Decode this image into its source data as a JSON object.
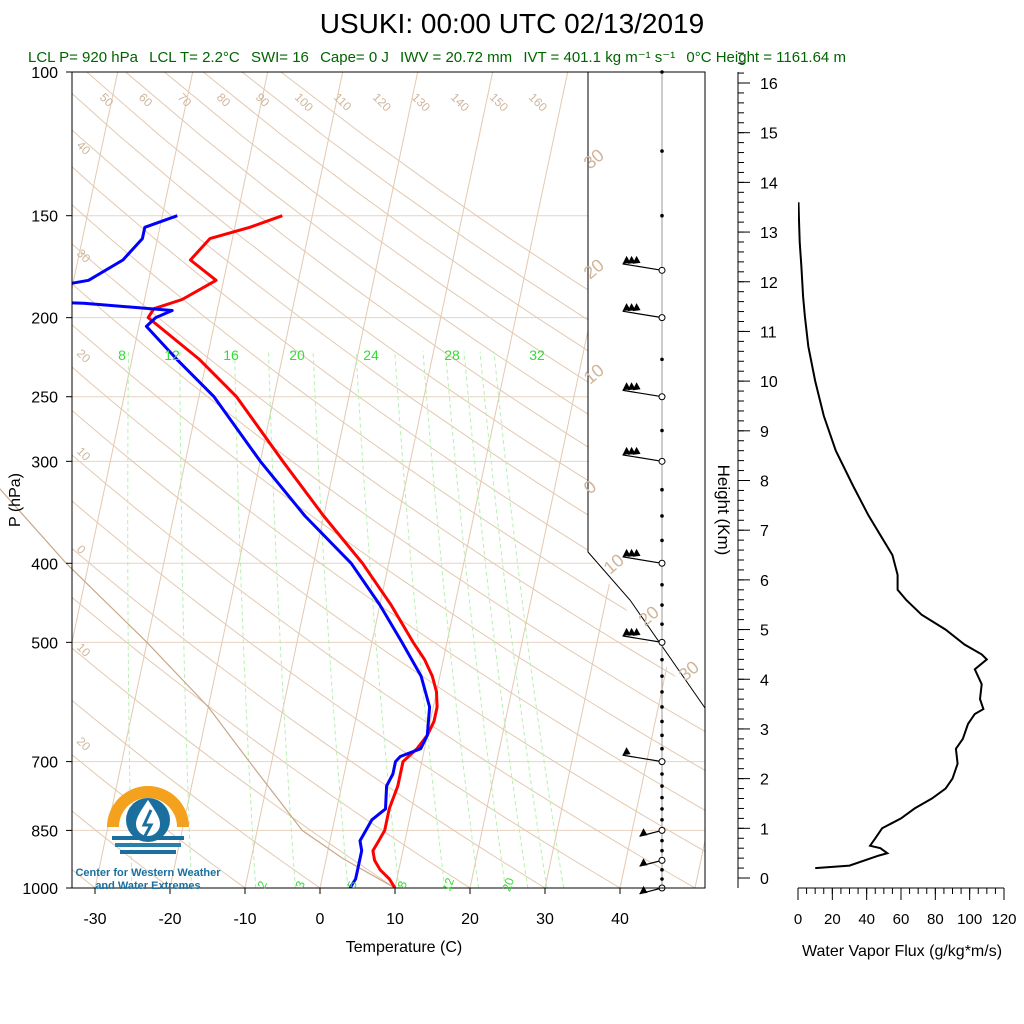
{
  "header": {
    "title": "USUKI: 00:00 UTC 02/13/2019",
    "info": [
      "LCL P= 920 hPa",
      "LCL T= 2.2°C",
      "SWI= 16",
      "Cape= 0 J",
      "IWV = 20.72 mm",
      "IVT = 401.1 kg m⁻¹ s⁻¹",
      "0°C Height = 1161.64 m"
    ]
  },
  "logo": {
    "line1": "Center for Western Weather",
    "line2": "and Water Extremes",
    "colors": {
      "orange": "#f4a11d",
      "blue": "#1b6f9f",
      "teal": "#2a7fa8"
    }
  },
  "chart_data": [
    {
      "type": "line",
      "subtype": "skew-T log-P sounding",
      "xlabel": "Temperature (C)",
      "ylabel": "P (hPa)",
      "xticks": [
        -30,
        -20,
        -10,
        0,
        10,
        20,
        30,
        40
      ],
      "yticks": [
        100,
        150,
        200,
        250,
        300,
        400,
        500,
        700,
        850,
        1000
      ],
      "ylim": [
        1000,
        100
      ],
      "y_scale": "log",
      "dry_adiabat_labels": [
        "50",
        "60",
        "70",
        "80",
        "90",
        "100",
        "110",
        "120",
        "130",
        "140",
        "150",
        "160",
        "40",
        "30",
        "20",
        "10",
        "0",
        "10",
        "20"
      ],
      "isotherm_labels": [
        "30",
        "20",
        "10",
        "0",
        "10",
        "20",
        "30"
      ],
      "mixing_ratio_labels_upper": [
        "8",
        "12",
        "16",
        "20",
        "24",
        "28",
        "32"
      ],
      "mixing_ratio_labels_lower": [
        "2",
        "3",
        "5",
        "8",
        "12",
        "20"
      ],
      "series": [
        {
          "name": "Temperature",
          "color": "#ff0000",
          "points": [
            [
              1000,
              10.0
            ],
            [
              975,
              9.0
            ],
            [
              950,
              7.5
            ],
            [
              925,
              6.5
            ],
            [
              900,
              6.0
            ],
            [
              875,
              6.5
            ],
            [
              850,
              7.0
            ],
            [
              800,
              7.0
            ],
            [
              750,
              7.5
            ],
            [
              700,
              7.5
            ],
            [
              675,
              9.0
            ],
            [
              650,
              10.0
            ],
            [
              625,
              10.5
            ],
            [
              600,
              10.5
            ],
            [
              575,
              10.0
            ],
            [
              550,
              9.0
            ],
            [
              525,
              7.5
            ],
            [
              500,
              5.5
            ],
            [
              450,
              1.5
            ],
            [
              400,
              -3.5
            ],
            [
              350,
              -10.0
            ],
            [
              300,
              -17.0
            ],
            [
              250,
              -25.0
            ],
            [
              225,
              -31.0
            ],
            [
              200,
              -39.0
            ],
            [
              195,
              -38.5
            ],
            [
              190,
              -35.0
            ],
            [
              180,
              -31.0
            ],
            [
              170,
              -35.0
            ],
            [
              160,
              -33.0
            ],
            [
              155,
              -28.0
            ],
            [
              150,
              -24.0
            ]
          ]
        },
        {
          "name": "Dewpoint",
          "color": "#0000ff",
          "points": [
            [
              1000,
              4.0
            ],
            [
              975,
              4.5
            ],
            [
              950,
              4.5
            ],
            [
              925,
              4.5
            ],
            [
              900,
              4.5
            ],
            [
              875,
              4.0
            ],
            [
              850,
              4.5
            ],
            [
              825,
              5.0
            ],
            [
              800,
              6.5
            ],
            [
              750,
              6.0
            ],
            [
              725,
              6.5
            ],
            [
              700,
              6.5
            ],
            [
              690,
              7.0
            ],
            [
              675,
              9.5
            ],
            [
              650,
              10.0
            ],
            [
              600,
              9.5
            ],
            [
              550,
              7.5
            ],
            [
              500,
              4.0
            ],
            [
              450,
              0.0
            ],
            [
              400,
              -5.0
            ],
            [
              350,
              -12.5
            ],
            [
              300,
              -20.0
            ],
            [
              250,
              -28.0
            ],
            [
              225,
              -34.0
            ],
            [
              205,
              -39.0
            ],
            [
              200,
              -38.0
            ],
            [
              196,
              -36.0
            ],
            [
              192,
              -48.0
            ],
            [
              190,
              -65.0
            ],
            [
              185,
              -55.0
            ],
            [
              180,
              -48.0
            ],
            [
              170,
              -44.0
            ],
            [
              160,
              -42.0
            ],
            [
              155,
              -42.0
            ],
            [
              150,
              -38.0
            ]
          ]
        }
      ],
      "wind_barbs": [
        "1000",
        "925",
        "850",
        "700",
        "500",
        "400",
        "300",
        "250",
        "200",
        "175"
      ],
      "barb_color": "#000000",
      "parcel_color": "#c8a889"
    },
    {
      "type": "line",
      "xlabel": "Water Vapor Flux (g/kg*m/s)",
      "ylabel": "Height (Km)",
      "xticks": [
        0,
        20,
        40,
        60,
        80,
        100,
        120
      ],
      "yticks": [
        0,
        1,
        2,
        3,
        4,
        5,
        6,
        7,
        8,
        9,
        10,
        11,
        12,
        13,
        14,
        15,
        16
      ],
      "xlim": [
        0,
        120
      ],
      "ylim": [
        0,
        16
      ],
      "series": [
        {
          "name": "",
          "color": "#000000",
          "points": [
            [
              10,
              0.2
            ],
            [
              30,
              0.25
            ],
            [
              47,
              0.45
            ],
            [
              52,
              0.5
            ],
            [
              48,
              0.6
            ],
            [
              42,
              0.65
            ],
            [
              45,
              0.8
            ],
            [
              49,
              1.0
            ],
            [
              60,
              1.2
            ],
            [
              68,
              1.4
            ],
            [
              78,
              1.6
            ],
            [
              86,
              1.8
            ],
            [
              90,
              2.0
            ],
            [
              93,
              2.3
            ],
            [
              92,
              2.6
            ],
            [
              96,
              2.8
            ],
            [
              99,
              3.1
            ],
            [
              103,
              3.3
            ],
            [
              108,
              3.4
            ],
            [
              106,
              3.6
            ],
            [
              107,
              3.9
            ],
            [
              103,
              4.2
            ],
            [
              110,
              4.4
            ],
            [
              107,
              4.5
            ],
            [
              97,
              4.7
            ],
            [
              86,
              5.0
            ],
            [
              72,
              5.3
            ],
            [
              63,
              5.6
            ],
            [
              58,
              5.8
            ],
            [
              58,
              6.1
            ],
            [
              55,
              6.5
            ],
            [
              48,
              6.9
            ],
            [
              41,
              7.3
            ],
            [
              32,
              7.9
            ],
            [
              22,
              8.6
            ],
            [
              15,
              9.3
            ],
            [
              10,
              10.0
            ],
            [
              6,
              10.7
            ],
            [
              4,
              11.3
            ],
            [
              3,
              11.7
            ],
            [
              2,
              12.3
            ],
            [
              1,
              12.8
            ],
            [
              0.5,
              13.3
            ],
            [
              0.3,
              13.6
            ]
          ]
        }
      ]
    }
  ]
}
